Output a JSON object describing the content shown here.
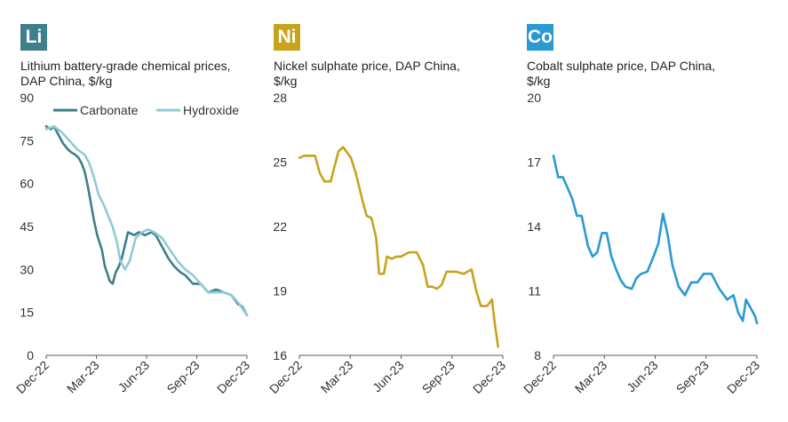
{
  "chart_data": [
    {
      "type": "line",
      "badge": "Li",
      "badge_color": "#3e7f8a",
      "title": "Lithium battery-grade chemical prices, DAP China, $/kg",
      "xlabel": "",
      "ylabel": "",
      "ylim": [
        0,
        90
      ],
      "yticks": [
        "0",
        "15",
        "30",
        "45",
        "60",
        "75",
        "90"
      ],
      "xticks": [
        "Dec-22",
        "Mar-23",
        "Jun-23",
        "Sep-23",
        "Dec-23"
      ],
      "x_range": [
        0,
        13
      ],
      "legend": "top",
      "series": [
        {
          "name": "Carbonate",
          "color": "#3e7f8a",
          "x": [
            0,
            0.3,
            0.5,
            0.7,
            0.9,
            1.1,
            1.4,
            1.6,
            1.9,
            2.1,
            2.3,
            2.5,
            2.7,
            2.9,
            3.1,
            3.3,
            3.6,
            3.8,
            4.0,
            4.1,
            4.3,
            4.5,
            4.7,
            4.9,
            5.3,
            5.7,
            6.0,
            6.4,
            6.8,
            7.1,
            7.5,
            7.9,
            8.3,
            8.7,
            9.0,
            9.5,
            10.0,
            10.5,
            11.0,
            11.5,
            12.0,
            12.4,
            12.7,
            13.0
          ],
          "values": [
            80,
            79,
            80,
            78,
            76,
            74,
            72,
            71,
            70,
            69,
            67,
            64,
            59,
            53,
            47,
            42,
            37,
            31,
            28,
            26,
            25,
            29,
            31,
            34,
            43,
            42,
            43,
            42,
            43,
            42,
            38,
            34,
            31,
            29,
            28,
            25,
            25,
            22,
            23,
            22,
            21,
            18,
            17,
            14
          ]
        },
        {
          "name": "Hydroxide",
          "color": "#90cbd6",
          "x": [
            0,
            0.5,
            1.0,
            1.5,
            2.0,
            2.5,
            2.8,
            3.1,
            3.4,
            3.7,
            4.0,
            4.3,
            4.6,
            4.8,
            5.1,
            5.4,
            5.8,
            6.2,
            6.6,
            7.0,
            7.5,
            8.0,
            8.5,
            9.0,
            9.5,
            10.0,
            10.5,
            11.0,
            11.5,
            12.0,
            12.5,
            13.0
          ],
          "values": [
            79,
            80,
            78,
            75,
            72,
            70,
            67,
            62,
            56,
            53,
            49,
            45,
            39,
            33,
            30,
            33,
            41,
            43,
            44,
            43,
            41,
            37,
            33,
            30,
            28,
            25,
            22,
            22,
            22,
            21,
            18,
            14
          ]
        }
      ]
    },
    {
      "type": "line",
      "badge": "Ni",
      "badge_color": "#c8a41d",
      "title": "Nickel sulphate price, DAP China, $/kg",
      "xlabel": "",
      "ylabel": "",
      "ylim": [
        16,
        28
      ],
      "yticks": [
        "16",
        "19",
        "22",
        "25",
        "28"
      ],
      "xticks": [
        "Dec-22",
        "Mar-23",
        "Jun-23",
        "Sep-23",
        "Dec-23"
      ],
      "x_range": [
        0,
        13
      ],
      "legend": "none",
      "series": [
        {
          "name": "",
          "color": "#c8a41d",
          "x": [
            0,
            0.3,
            0.6,
            1.0,
            1.3,
            1.6,
            2.0,
            2.5,
            2.8,
            3.0,
            3.3,
            3.6,
            4.0,
            4.3,
            4.6,
            4.9,
            5.1,
            5.4,
            5.6,
            5.9,
            6.2,
            6.5,
            7.0,
            7.5,
            7.9,
            8.2,
            8.5,
            8.8,
            9.1,
            9.4,
            10.0,
            10.5,
            11.0,
            11.3,
            11.6,
            12.0,
            12.3,
            12.5,
            12.7
          ],
          "values": [
            25.2,
            25.3,
            25.3,
            25.3,
            24.5,
            24.1,
            24.1,
            25.5,
            25.7,
            25.5,
            25.2,
            24.5,
            23.3,
            22.5,
            22.4,
            21.5,
            19.8,
            19.8,
            20.6,
            20.5,
            20.6,
            20.6,
            20.8,
            20.8,
            20.2,
            19.2,
            19.2,
            19.1,
            19.3,
            19.9,
            19.9,
            19.8,
            20.0,
            19.0,
            18.3,
            18.3,
            18.6,
            17.4,
            16.4
          ]
        }
      ]
    },
    {
      "type": "line",
      "badge": "Co",
      "badge_color": "#2a9ad3",
      "title": "Cobalt sulphate price, DAP China, $/kg",
      "xlabel": "",
      "ylabel": "",
      "ylim": [
        8,
        20
      ],
      "yticks": [
        "8",
        "11",
        "14",
        "17",
        "20"
      ],
      "xticks": [
        "Dec-22",
        "Mar-23",
        "Jun-23",
        "Sep-23",
        "Dec-23"
      ],
      "x_range": [
        0,
        13
      ],
      "legend": "none",
      "series": [
        {
          "name": "",
          "color": "#2a9ad3",
          "x": [
            0,
            0.3,
            0.6,
            0.9,
            1.2,
            1.5,
            1.8,
            2.2,
            2.5,
            2.8,
            3.1,
            3.4,
            3.7,
            4.0,
            4.3,
            4.6,
            5.0,
            5.3,
            5.6,
            6.0,
            6.4,
            6.7,
            7.0,
            7.3,
            7.6,
            8.0,
            8.4,
            8.8,
            9.2,
            9.6,
            10.1,
            10.6,
            11.1,
            11.5,
            11.8,
            12.1,
            12.3,
            12.6,
            12.9,
            13.0
          ],
          "values": [
            17.3,
            16.3,
            16.3,
            15.8,
            15.3,
            14.5,
            14.5,
            13.1,
            12.6,
            12.8,
            13.7,
            13.7,
            12.6,
            12.0,
            11.5,
            11.2,
            11.1,
            11.6,
            11.8,
            11.9,
            12.6,
            13.2,
            14.6,
            13.6,
            12.2,
            11.2,
            10.8,
            11.4,
            11.4,
            11.8,
            11.8,
            11.1,
            10.6,
            10.8,
            10.0,
            9.6,
            10.6,
            10.2,
            9.8,
            9.5
          ]
        }
      ]
    }
  ]
}
